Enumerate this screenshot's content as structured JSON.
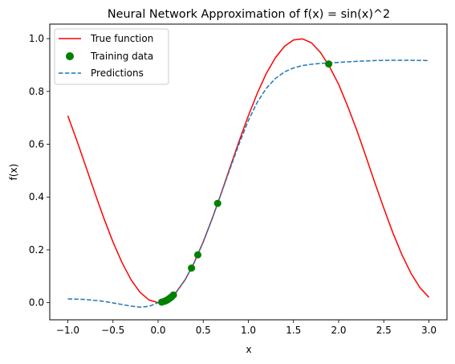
{
  "chart_data": {
    "type": "line",
    "title": "Neural Network Approximation of f(x) = sin(x)^2",
    "xlabel": "x",
    "ylabel": "f(x)",
    "xlim": [
      -1.2,
      3.2
    ],
    "ylim": [
      -0.065,
      1.055
    ],
    "xticks": [
      "−1.0",
      "−0.5",
      "0.0",
      "0.5",
      "1.0",
      "1.5",
      "2.0",
      "2.5",
      "3.0"
    ],
    "yticks": [
      "0.0",
      "0.2",
      "0.4",
      "0.6",
      "0.8",
      "1.0"
    ],
    "legend_position": "top-left",
    "grid": false,
    "series": [
      {
        "name": "True function",
        "kind": "line",
        "color": "#ff0000",
        "style": "solid",
        "x": [
          -1.0,
          -0.9,
          -0.8,
          -0.7,
          -0.6,
          -0.5,
          -0.4,
          -0.3,
          -0.2,
          -0.1,
          0.0,
          0.1,
          0.2,
          0.3,
          0.4,
          0.5,
          0.6,
          0.7,
          0.8,
          0.9,
          1.0,
          1.1,
          1.2,
          1.3,
          1.4,
          1.5,
          1.6,
          1.7,
          1.8,
          1.9,
          2.0,
          2.1,
          2.2,
          2.3,
          2.4,
          2.5,
          2.6,
          2.7,
          2.8,
          2.9,
          3.0
        ],
        "y": [
          0.708,
          0.614,
          0.515,
          0.415,
          0.319,
          0.23,
          0.152,
          0.087,
          0.039,
          0.01,
          0.0,
          0.01,
          0.039,
          0.087,
          0.152,
          0.23,
          0.319,
          0.415,
          0.515,
          0.614,
          0.708,
          0.794,
          0.869,
          0.928,
          0.971,
          0.995,
          0.999,
          0.984,
          0.947,
          0.893,
          0.827,
          0.744,
          0.654,
          0.556,
          0.455,
          0.358,
          0.265,
          0.182,
          0.112,
          0.057,
          0.02
        ]
      },
      {
        "name": "Training data",
        "kind": "scatter",
        "color": "#008000",
        "x": [
          0.04,
          0.07,
          0.09,
          0.11,
          0.13,
          0.15,
          0.17,
          0.37,
          0.44,
          0.66,
          1.89
        ],
        "y": [
          0.002,
          0.005,
          0.008,
          0.012,
          0.017,
          0.022,
          0.029,
          0.131,
          0.181,
          0.376,
          0.904
        ]
      },
      {
        "name": "Predictions",
        "kind": "line",
        "color": "#1f77b4",
        "style": "dashed",
        "x": [
          -1.0,
          -0.8,
          -0.6,
          -0.4,
          -0.3,
          -0.2,
          -0.1,
          0.0,
          0.1,
          0.2,
          0.3,
          0.4,
          0.5,
          0.6,
          0.7,
          0.8,
          0.9,
          1.0,
          1.1,
          1.2,
          1.3,
          1.4,
          1.5,
          1.6,
          1.7,
          1.8,
          1.9,
          2.0,
          2.2,
          2.4,
          2.6,
          2.8,
          3.0
        ],
        "y": [
          0.014,
          0.012,
          0.005,
          -0.007,
          -0.013,
          -0.017,
          -0.014,
          0.0,
          0.012,
          0.04,
          0.087,
          0.151,
          0.23,
          0.319,
          0.414,
          0.51,
          0.604,
          0.69,
          0.76,
          0.812,
          0.849,
          0.874,
          0.889,
          0.898,
          0.903,
          0.906,
          0.908,
          0.91,
          0.914,
          0.917,
          0.918,
          0.918,
          0.917
        ]
      }
    ]
  }
}
